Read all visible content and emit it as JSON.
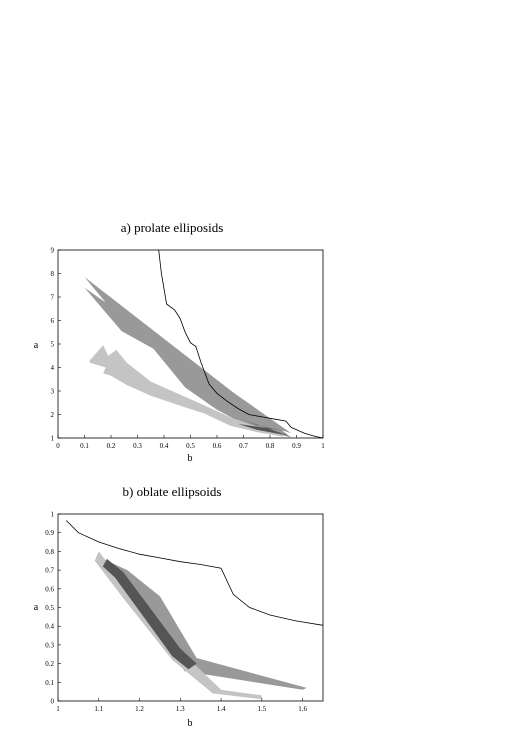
{
  "chart_data": [
    {
      "type": "area",
      "title": "a) prolate elliposids",
      "xlabel": "b",
      "ylabel": "a",
      "xlim": [
        0,
        1
      ],
      "ylim": [
        1,
        9
      ],
      "xticks": [
        "0",
        "0.1",
        "0.2",
        "0.3",
        "0.4",
        "0.5",
        "0.6",
        "0.7",
        "0.8",
        "0.9",
        "1"
      ],
      "yticks": [
        "1",
        "2",
        "3",
        "4",
        "5",
        "6",
        "7",
        "8",
        "9"
      ],
      "colors": {
        "bound": "#000000",
        "dark": "#555555",
        "medium": "#999999",
        "light": "#c4c4c4"
      },
      "bound_curve": [
        [
          0.38,
          9.0
        ],
        [
          0.39,
          8.0
        ],
        [
          0.41,
          6.7
        ],
        [
          0.44,
          6.45
        ],
        [
          0.46,
          6.1
        ],
        [
          0.48,
          5.5
        ],
        [
          0.5,
          5.05
        ],
        [
          0.52,
          4.9
        ],
        [
          0.54,
          4.2
        ],
        [
          0.57,
          3.3
        ],
        [
          0.6,
          2.9
        ],
        [
          0.64,
          2.55
        ],
        [
          0.68,
          2.25
        ],
        [
          0.72,
          2.0
        ],
        [
          0.77,
          1.9
        ],
        [
          0.83,
          1.78
        ],
        [
          0.86,
          1.72
        ],
        [
          0.88,
          1.45
        ],
        [
          0.93,
          1.2
        ],
        [
          0.97,
          1.07
        ],
        [
          1.0,
          1.0
        ]
      ],
      "bands": [
        {
          "color": "medium",
          "upper": [
            [
              0.1,
              7.85
            ],
            [
              0.24,
              5.95
            ],
            [
              0.36,
              5.2
            ],
            [
              0.48,
              3.55
            ],
            [
              0.6,
              2.55
            ],
            [
              0.7,
              1.88
            ],
            [
              0.8,
              1.5
            ],
            [
              0.88,
              1.2
            ]
          ],
          "lower": [
            [
              0.1,
              7.4
            ],
            [
              0.24,
              5.55
            ],
            [
              0.36,
              4.8
            ],
            [
              0.48,
              3.15
            ],
            [
              0.6,
              2.2
            ],
            [
              0.7,
              1.6
            ],
            [
              0.8,
              1.25
            ],
            [
              0.88,
              1.02
            ]
          ]
        },
        {
          "color": "light",
          "upper": [
            [
              0.12,
              4.3
            ],
            [
              0.17,
              4.95
            ],
            [
              0.19,
              4.5
            ],
            [
              0.22,
              4.75
            ],
            [
              0.26,
              4.2
            ],
            [
              0.35,
              3.4
            ],
            [
              0.48,
              2.75
            ],
            [
              0.55,
              2.4
            ],
            [
              0.65,
              1.88
            ],
            [
              0.75,
              1.48
            ],
            [
              0.85,
              1.2
            ]
          ],
          "lower": [
            [
              0.85,
              1.05
            ],
            [
              0.75,
              1.25
            ],
            [
              0.65,
              1.52
            ],
            [
              0.55,
              2.05
            ],
            [
              0.48,
              2.3
            ],
            [
              0.35,
              2.8
            ],
            [
              0.26,
              3.25
            ],
            [
              0.2,
              3.65
            ],
            [
              0.17,
              3.75
            ],
            [
              0.18,
              4.0
            ],
            [
              0.12,
              4.2
            ]
          ]
        },
        {
          "color": "dark",
          "upper": [
            [
              0.68,
              1.85
            ],
            [
              0.75,
              1.55
            ],
            [
              0.82,
              1.38
            ],
            [
              0.87,
              1.28
            ]
          ],
          "lower": [
            [
              0.68,
              1.6
            ],
            [
              0.75,
              1.35
            ],
            [
              0.82,
              1.2
            ],
            [
              0.87,
              1.1
            ]
          ]
        }
      ]
    },
    {
      "type": "area",
      "title": "b) oblate ellipsoids",
      "xlabel": "b",
      "ylabel": "a",
      "xlim": [
        1,
        1.65
      ],
      "ylim": [
        0,
        1
      ],
      "xticks": [
        "1",
        "1.1",
        "1.2",
        "1.3",
        "1.4",
        "1.5",
        "1.6"
      ],
      "yticks": [
        "0",
        "0.1",
        "0.2",
        "0.3",
        "0.4",
        "0.5",
        "0.6",
        "0.7",
        "0.8",
        "0.9",
        "1"
      ],
      "colors": {
        "bound": "#000000",
        "dark": "#555555",
        "medium": "#999999",
        "light": "#c4c4c4"
      },
      "bound_curve": [
        [
          1.02,
          0.965
        ],
        [
          1.05,
          0.9
        ],
        [
          1.1,
          0.85
        ],
        [
          1.15,
          0.815
        ],
        [
          1.2,
          0.785
        ],
        [
          1.25,
          0.765
        ],
        [
          1.3,
          0.745
        ],
        [
          1.35,
          0.73
        ],
        [
          1.4,
          0.71
        ],
        [
          1.43,
          0.57
        ],
        [
          1.47,
          0.5
        ],
        [
          1.52,
          0.46
        ],
        [
          1.58,
          0.43
        ],
        [
          1.65,
          0.405
        ]
      ],
      "bands": [
        {
          "color": "medium",
          "upper": [
            [
              1.1,
              0.77
            ],
            [
              1.17,
              0.7
            ],
            [
              1.25,
              0.56
            ],
            [
              1.34,
              0.23
            ],
            [
              1.61,
              0.07
            ]
          ],
          "lower": [
            [
              1.6,
              0.06
            ],
            [
              1.31,
              0.16
            ],
            [
              1.2,
              0.57
            ],
            [
              1.14,
              0.67
            ],
            [
              1.1,
              0.73
            ]
          ]
        },
        {
          "color": "light",
          "upper": [
            [
              1.1,
              0.8
            ],
            [
              1.17,
              0.6
            ],
            [
              1.3,
              0.27
            ],
            [
              1.4,
              0.06
            ],
            [
              1.5,
              0.03
            ]
          ],
          "lower": [
            [
              1.5,
              0.01
            ],
            [
              1.38,
              0.04
            ],
            [
              1.28,
              0.22
            ],
            [
              1.16,
              0.55
            ],
            [
              1.09,
              0.75
            ]
          ]
        },
        {
          "color": "dark",
          "upper": [
            [
              1.12,
              0.76
            ],
            [
              1.16,
              0.69
            ],
            [
              1.3,
              0.28
            ],
            [
              1.34,
              0.2
            ]
          ],
          "lower": [
            [
              1.32,
              0.17
            ],
            [
              1.28,
              0.24
            ],
            [
              1.14,
              0.66
            ],
            [
              1.11,
              0.72
            ]
          ]
        }
      ]
    }
  ]
}
